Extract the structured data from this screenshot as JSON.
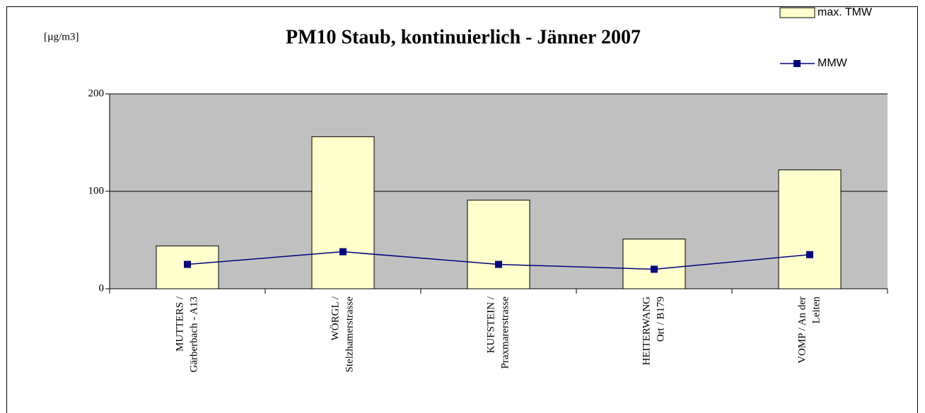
{
  "chart_data": {
    "type": "bar",
    "title": "PM10 Staub, kontinuierlich - Jänner 2007",
    "y_label": "[µg/m3]",
    "categories": [
      [
        "MUTTERS /",
        "Gärberbach - A13"
      ],
      [
        "WÖRGL /",
        "Stelzhamerstrasse"
      ],
      [
        "KUFSTEIN /",
        "Praxmarerstrasse"
      ],
      [
        "HEITERWANG",
        "Ort / B179"
      ],
      [
        "VOMP / An der",
        "Leiten"
      ]
    ],
    "series": [
      {
        "name": "max. TMW",
        "type": "bar",
        "color": "#ffffcc",
        "values": [
          44,
          156,
          91,
          51,
          122
        ]
      },
      {
        "name": "MMW",
        "type": "line",
        "color": "#000080",
        "values": [
          25,
          38,
          25,
          20,
          35
        ]
      }
    ],
    "ylim": [
      0,
      200
    ],
    "yticks": [
      0,
      100,
      200
    ],
    "grid": true,
    "plot_background": "#c0c0c0"
  }
}
